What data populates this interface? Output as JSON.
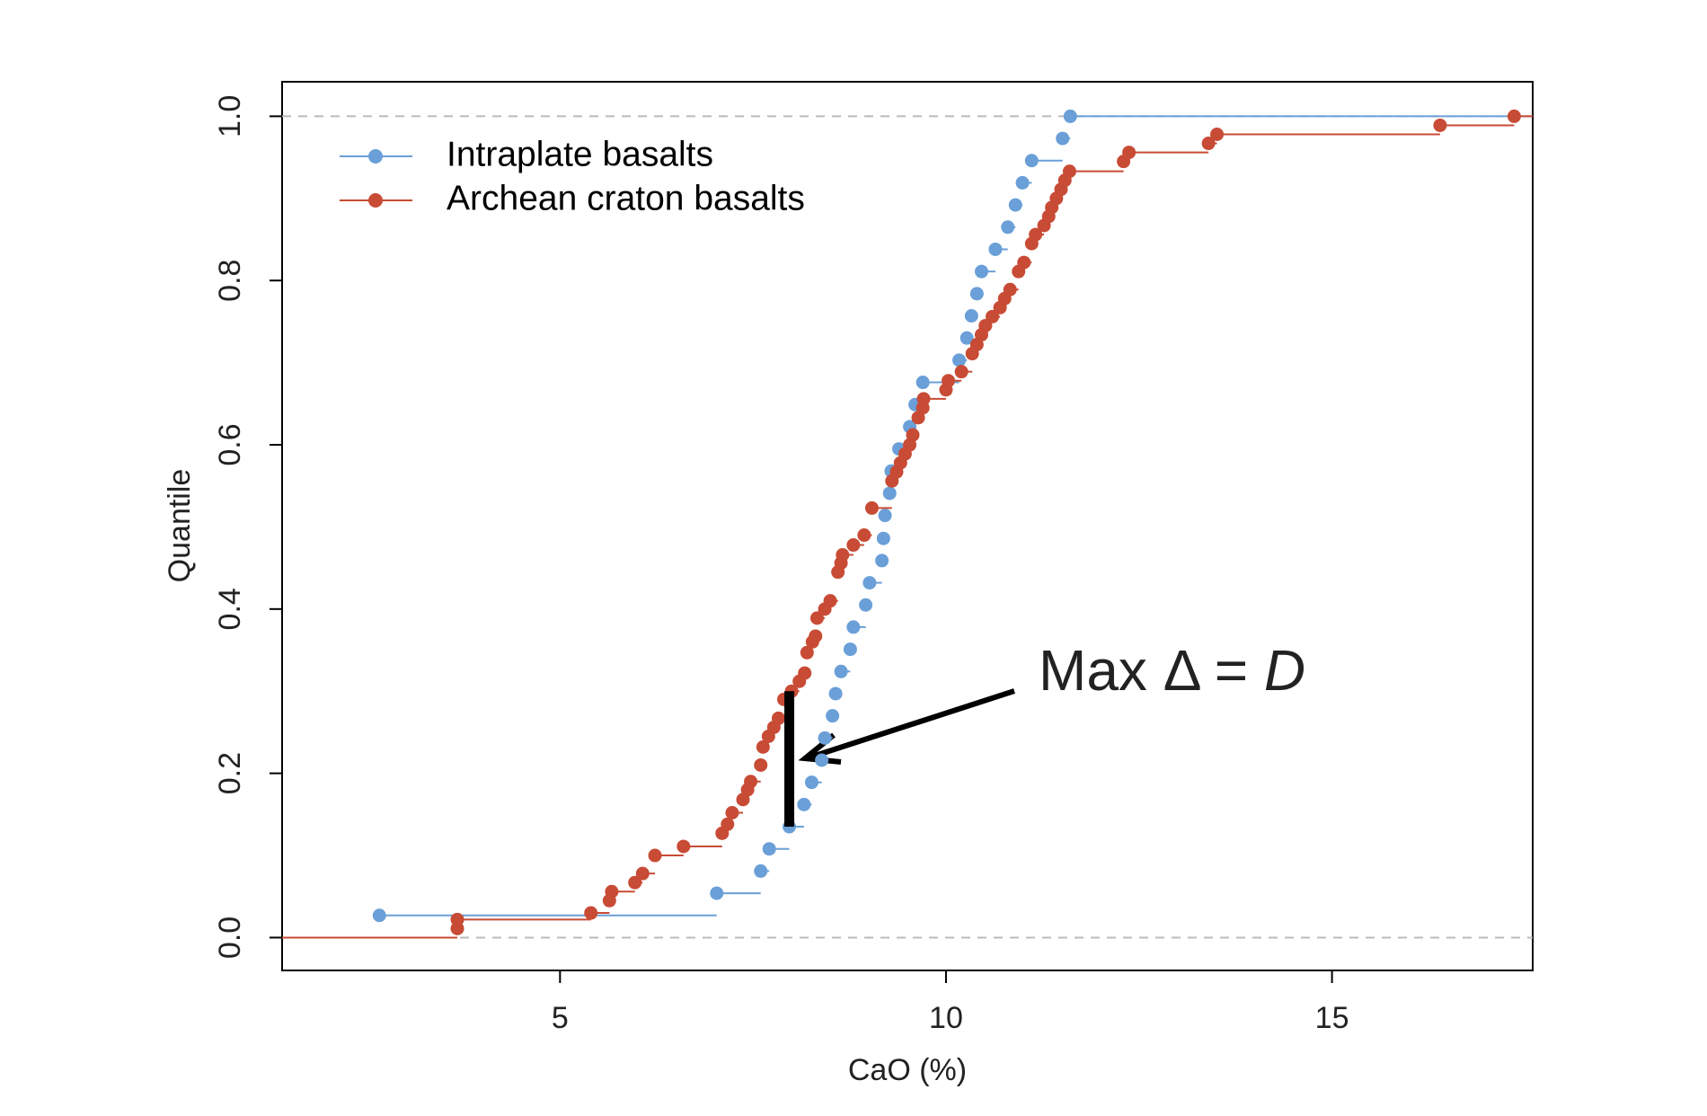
{
  "chart_data": {
    "type": "ecdf",
    "xlabel": "CaO (%)",
    "ylabel": "Quantile",
    "xlim": [
      1.4,
      17.6
    ],
    "ylim": [
      -0.04,
      1.042
    ],
    "xticks": [
      5,
      10,
      15
    ],
    "yticks": [
      {
        "value": 0,
        "label": "0.0"
      },
      0.2,
      0.4,
      0.6,
      0.8,
      {
        "value": 1,
        "label": "1.0"
      }
    ],
    "hlines": [
      0,
      1
    ],
    "legend": "top-left",
    "series": [
      {
        "name": "Intraplate basalts",
        "color": "#6a9fd8",
        "x": [
          2.66,
          7.03,
          7.6,
          7.71,
          7.97,
          8.16,
          8.26,
          8.39,
          8.43,
          8.53,
          8.57,
          8.64,
          8.76,
          8.8,
          8.96,
          9.01,
          9.17,
          9.19,
          9.21,
          9.27,
          9.29,
          9.39,
          9.53,
          9.6,
          9.7,
          10.17,
          10.27,
          10.33,
          10.4,
          10.46,
          10.64,
          10.8,
          10.9,
          10.99,
          11.11,
          11.51,
          11.61
        ],
        "values": [
          0.027,
          0.054,
          0.081,
          0.108,
          0.135,
          0.162,
          0.189,
          0.216,
          0.243,
          0.27,
          0.297,
          0.324,
          0.351,
          0.378,
          0.405,
          0.432,
          0.459,
          0.486,
          0.514,
          0.541,
          0.568,
          0.595,
          0.622,
          0.649,
          0.676,
          0.703,
          0.73,
          0.757,
          0.784,
          0.811,
          0.838,
          0.865,
          0.892,
          0.919,
          0.946,
          0.973,
          1.0
        ]
      },
      {
        "name": "Archean craton basalts",
        "color": "#c84b35",
        "x": [
          3.67,
          3.67,
          5.4,
          5.64,
          5.67,
          5.97,
          6.07,
          6.23,
          6.6,
          7.1,
          7.17,
          7.23,
          7.37,
          7.43,
          7.47,
          7.6,
          7.63,
          7.7,
          7.77,
          7.83,
          7.9,
          8.0,
          8.1,
          8.17,
          8.2,
          8.27,
          8.31,
          8.33,
          8.43,
          8.5,
          8.6,
          8.64,
          8.66,
          8.8,
          8.94,
          9.04,
          9.3,
          9.36,
          9.41,
          9.47,
          9.53,
          9.57,
          9.64,
          9.7,
          9.71,
          10.0,
          10.03,
          10.2,
          10.34,
          10.4,
          10.46,
          10.51,
          10.6,
          10.7,
          10.76,
          10.83,
          10.94,
          11.01,
          11.11,
          11.16,
          11.27,
          11.33,
          11.37,
          11.43,
          11.49,
          11.54,
          11.6,
          12.3,
          12.37,
          13.4,
          13.51,
          16.4,
          17.36
        ],
        "values": [
          0.011,
          0.022,
          0.03,
          0.045,
          0.056,
          0.067,
          0.078,
          0.1,
          0.111,
          0.127,
          0.138,
          0.152,
          0.168,
          0.18,
          0.19,
          0.21,
          0.232,
          0.245,
          0.256,
          0.267,
          0.29,
          0.3,
          0.312,
          0.322,
          0.347,
          0.36,
          0.367,
          0.389,
          0.4,
          0.41,
          0.445,
          0.456,
          0.466,
          0.478,
          0.49,
          0.523,
          0.556,
          0.567,
          0.578,
          0.589,
          0.6,
          0.612,
          0.633,
          0.645,
          0.656,
          0.667,
          0.678,
          0.689,
          0.711,
          0.722,
          0.734,
          0.745,
          0.756,
          0.767,
          0.778,
          0.789,
          0.811,
          0.822,
          0.845,
          0.856,
          0.867,
          0.878,
          0.889,
          0.9,
          0.911,
          0.922,
          0.933,
          0.945,
          0.956,
          0.967,
          0.978,
          0.989,
          1.0
        ]
      }
    ],
    "max_difference": {
      "x": 7.97,
      "from": 0.135,
      "to": 0.3
    },
    "annotation": "Max Δ =",
    "annotation_symbol": "D"
  }
}
